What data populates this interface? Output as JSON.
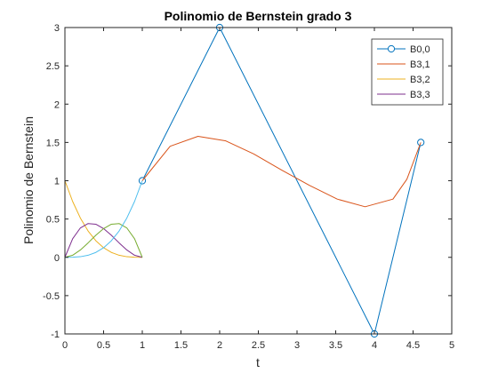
{
  "chart_data": {
    "type": "line",
    "title": "Polinomio de Bernstein grado 3",
    "xlabel": "t",
    "ylabel": "Polinomio de Bernstein",
    "xlim": [
      0,
      5
    ],
    "ylim": [
      -1,
      3
    ],
    "xticks": [
      0,
      0.5,
      1,
      1.5,
      2,
      2.5,
      3,
      3.5,
      4,
      4.5,
      5
    ],
    "xtick_labels": [
      "0",
      "0.5",
      "1",
      "1.5",
      "2",
      "2.5",
      "3",
      "3.5",
      "4",
      "4.5",
      "5"
    ],
    "yticks": [
      -1,
      -0.5,
      0,
      0.5,
      1,
      1.5,
      2,
      2.5,
      3
    ],
    "ytick_labels": [
      "-1",
      "-0.5",
      "0",
      "0.5",
      "1",
      "1.5",
      "2",
      "2.5",
      "3"
    ],
    "grid": false,
    "legend_position": "top-right",
    "series": [
      {
        "name": "B0,0",
        "color": "#0072BD",
        "marker": "circle",
        "x": [
          1,
          2,
          4,
          4.6
        ],
        "y": [
          1,
          3,
          -1,
          1.5
        ]
      },
      {
        "name": "B3,1",
        "color": "#D95319",
        "x": [
          1,
          1.36,
          1.72,
          2.08,
          2.44,
          2.8,
          3.16,
          3.52,
          3.88,
          4.24,
          4.42,
          4.6
        ],
        "y": [
          1,
          1.45,
          1.58,
          1.52,
          1.35,
          1.14,
          0.94,
          0.76,
          0.66,
          0.76,
          1.02,
          1.5
        ]
      },
      {
        "name": "B3,2",
        "color": "#EDB120",
        "x": [
          0,
          0.1,
          0.2,
          0.3,
          0.4,
          0.5,
          0.6,
          0.7,
          0.8,
          0.9,
          1
        ],
        "y": [
          1,
          0.729,
          0.512,
          0.343,
          0.216,
          0.125,
          0.064,
          0.027,
          0.008,
          0.001,
          0
        ]
      },
      {
        "name": "B3,3",
        "color": "#7E2F8E",
        "x": [
          0,
          0.1,
          0.2,
          0.3,
          0.4,
          0.5,
          0.6,
          0.7,
          0.8,
          0.9,
          1
        ],
        "y": [
          0,
          0.243,
          0.384,
          0.441,
          0.432,
          0.375,
          0.288,
          0.189,
          0.096,
          0.027,
          0
        ]
      },
      {
        "color": "#77AC30",
        "x": [
          0,
          0.1,
          0.2,
          0.3,
          0.4,
          0.5,
          0.6,
          0.7,
          0.8,
          0.9,
          1
        ],
        "y": [
          0,
          0.027,
          0.096,
          0.189,
          0.288,
          0.375,
          0.432,
          0.441,
          0.384,
          0.243,
          0
        ]
      },
      {
        "color": "#4DBEEE",
        "x": [
          0,
          0.1,
          0.2,
          0.3,
          0.4,
          0.5,
          0.6,
          0.7,
          0.8,
          0.9,
          1
        ],
        "y": [
          0,
          0.001,
          0.008,
          0.027,
          0.064,
          0.125,
          0.216,
          0.343,
          0.512,
          0.729,
          1
        ]
      }
    ]
  }
}
